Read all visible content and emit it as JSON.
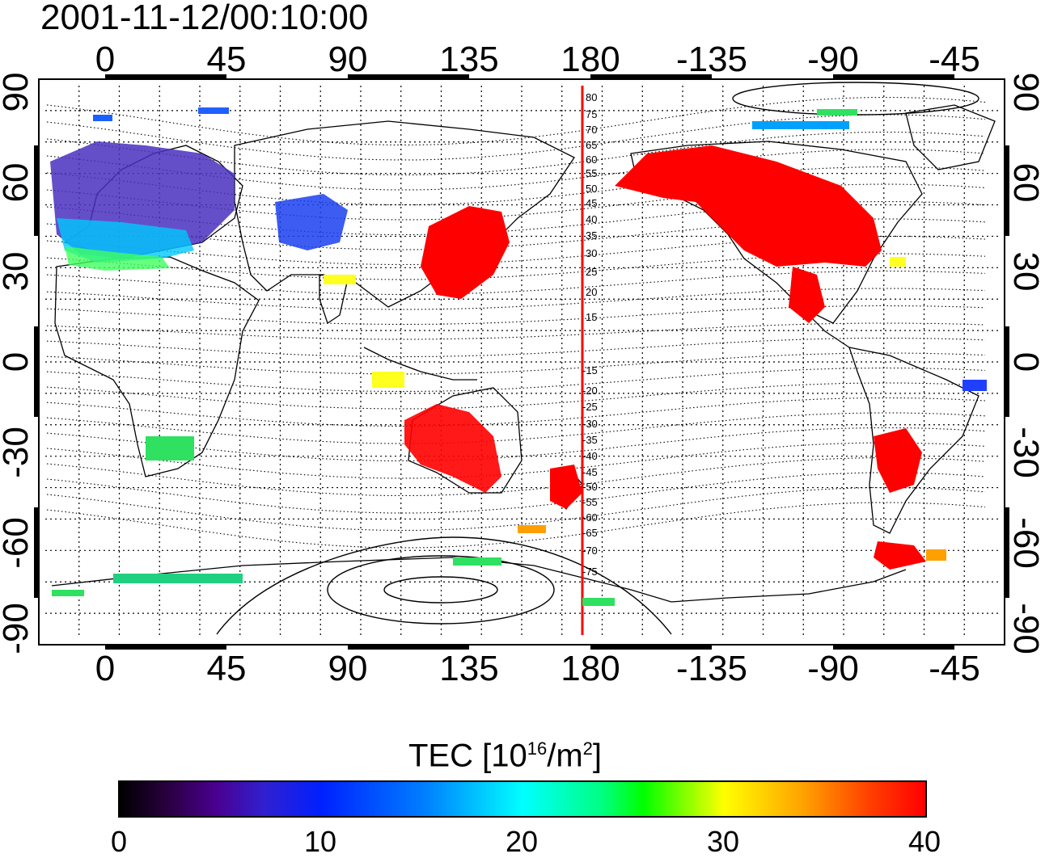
{
  "timestamp": "2001-11-12/00:10:00",
  "lon_ticks": [
    "0",
    "45",
    "90",
    "135",
    "180",
    "-135",
    "-90",
    "-45"
  ],
  "lat_ticks": [
    "90",
    "60",
    "30",
    "0",
    "-30",
    "-60",
    "-90"
  ],
  "contour_labels_north": [
    "80",
    "75",
    "70",
    "65",
    "60",
    "55",
    "50",
    "45",
    "40",
    "35",
    "30",
    "25",
    "20",
    "15"
  ],
  "contour_labels_south": [
    "15",
    "20",
    "25",
    "30",
    "35",
    "40",
    "45",
    "50",
    "55",
    "60",
    "65",
    "70",
    "75"
  ],
  "colorbar": {
    "title_prefix": "TEC  [10",
    "title_exp1": "16",
    "title_mid": "/m",
    "title_exp2": "2",
    "title_suffix": "]",
    "ticks": [
      "0",
      "10",
      "20",
      "30",
      "40"
    ],
    "min": 0,
    "max": 40
  },
  "colors": {
    "high_tec": "#ff0000",
    "meridian_line": "#ff0000"
  }
}
